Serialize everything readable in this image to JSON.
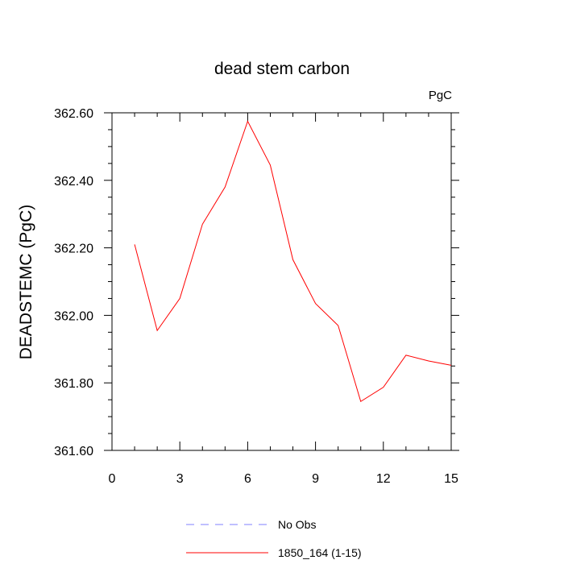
{
  "chart_data": {
    "type": "line",
    "title": "dead stem carbon",
    "units_label": "PgC",
    "ylabel": "DEADSTEMC  (PgC)",
    "xlabel": "",
    "xlim": [
      0,
      15
    ],
    "ylim": [
      361.6,
      362.6
    ],
    "x_ticks": [
      0,
      3,
      6,
      9,
      12,
      15
    ],
    "x_tick_labels": [
      "0",
      "3",
      "6",
      "9",
      "12",
      "15"
    ],
    "y_ticks": [
      361.6,
      361.8,
      362.0,
      362.2,
      362.4,
      362.6
    ],
    "y_tick_labels": [
      "361.60",
      "361.80",
      "362.00",
      "362.20",
      "362.40",
      "362.60"
    ],
    "grid": false,
    "legend_position": "bottom",
    "series": [
      {
        "name": "No Obs",
        "color": "#8080ff",
        "dash": "dashed",
        "x": [],
        "values": []
      },
      {
        "name": "1850_164 (1-15)",
        "color": "#ff0000",
        "dash": "solid",
        "x": [
          1,
          2,
          3,
          4,
          5,
          6,
          7,
          8,
          9,
          10,
          11,
          12,
          13,
          14,
          15
        ],
        "values": [
          362.21,
          361.955,
          362.05,
          362.27,
          362.38,
          362.575,
          362.445,
          362.165,
          362.035,
          361.97,
          361.745,
          361.787,
          361.882,
          361.865,
          361.852
        ]
      }
    ]
  }
}
